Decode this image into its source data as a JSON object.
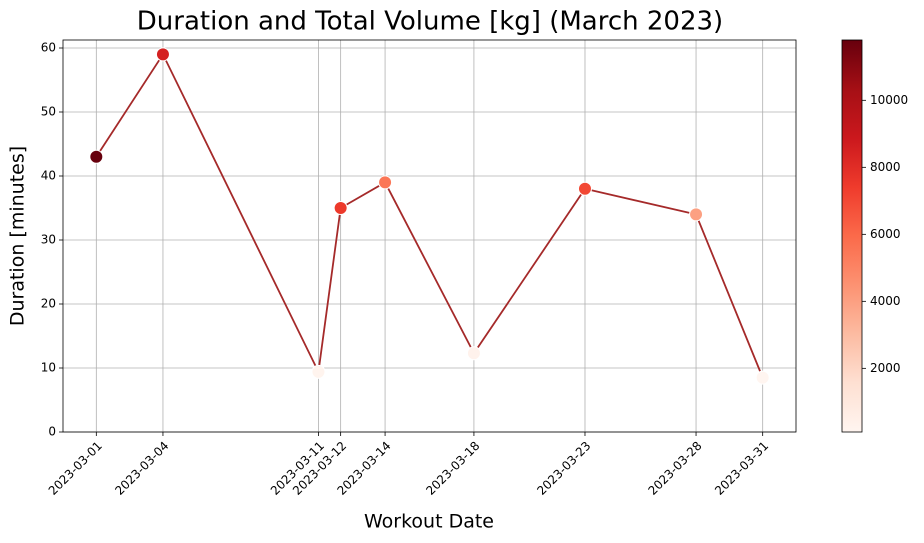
{
  "chart_data": {
    "type": "line",
    "title": "Duration and Total Volume [kg] (March 2023)",
    "x_label": "Workout Date",
    "y_label": "Duration [minutes]",
    "x": [
      "2023-03-01",
      "2023-03-04",
      "2023-03-11",
      "2023-03-12",
      "2023-03-14",
      "2023-03-18",
      "2023-03-23",
      "2023-03-28",
      "2023-03-31"
    ],
    "series": [
      {
        "color": "#a52a2a",
        "values": [
          43,
          59,
          9.4,
          35,
          39,
          12.3,
          38,
          34,
          8.5
        ]
      }
    ],
    "xlim": [
      "2023-02-27T12:00",
      "2023-04-01T12:00"
    ],
    "xticks": [
      "2023-03-01",
      "2023-03-04",
      "2023-03-11",
      "2023-03-12",
      "2023-03-14",
      "2023-03-18",
      "2023-03-23",
      "2023-03-28",
      "2023-03-31"
    ],
    "ylim": [
      0,
      61.25
    ],
    "yticks": [
      0,
      10,
      20,
      30,
      40,
      50,
      60
    ],
    "grid": true,
    "colorbar": {
      "values": [
        11800,
        8500,
        200,
        7500,
        5500,
        300,
        7000,
        4000,
        100
      ],
      "lim": [
        100,
        11800
      ],
      "ticks": [
        2000,
        4000,
        6000,
        8000,
        10000
      ],
      "colormap": [
        "#fff5f0",
        "#fee0d2",
        "#fcbba1",
        "#fc9272",
        "#fb6a4a",
        "#ef3b2c",
        "#cb181d",
        "#a50f15",
        "#67000d"
      ]
    }
  }
}
